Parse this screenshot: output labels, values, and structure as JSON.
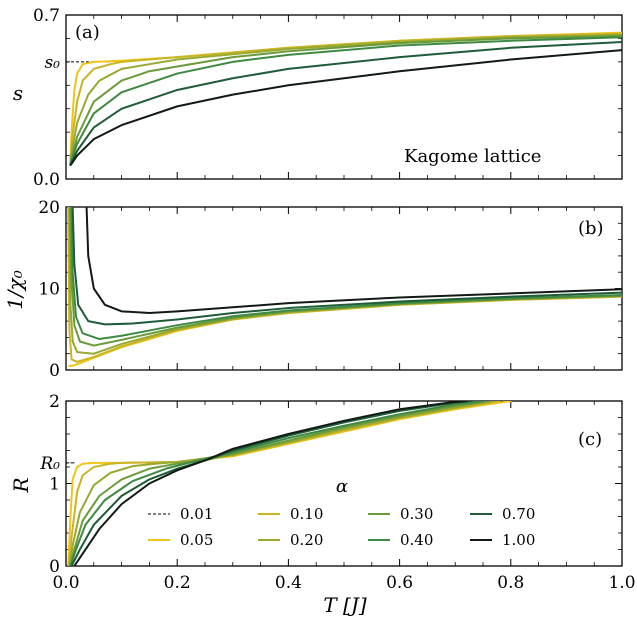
{
  "chart_data": [
    {
      "type": "line",
      "panel_tag": "(a)",
      "ylabel": "s",
      "ylim": [
        0,
        0.7
      ],
      "yticks": [
        "0.0",
        "0.7"
      ],
      "ref_label": "s₀",
      "ref_value": 0.5,
      "annotation": "Kagome lattice",
      "show_x_tick_labels": false,
      "series": [
        {
          "name": "0.01",
          "color": "#000000",
          "x": [
            0.001,
            0.01,
            0.05,
            0.1,
            0.2,
            0.4,
            0.6,
            0.8,
            1.0
          ],
          "y": [
            0.5,
            0.5,
            0.5,
            0.5,
            0.5,
            0.5,
            0.5,
            0.5,
            0.5
          ]
        },
        {
          "name": "0.05",
          "color": "#f0c419",
          "x": [
            0.008,
            0.01,
            0.015,
            0.02,
            0.03,
            0.05,
            0.1,
            0.2,
            0.4,
            0.6,
            0.8,
            1.0
          ],
          "y": [
            0.08,
            0.2,
            0.38,
            0.45,
            0.49,
            0.5,
            0.505,
            0.52,
            0.56,
            0.59,
            0.61,
            0.625
          ]
        },
        {
          "name": "0.10",
          "color": "#c9b424",
          "x": [
            0.008,
            0.01,
            0.02,
            0.03,
            0.05,
            0.08,
            0.1,
            0.2,
            0.4,
            0.6,
            0.8,
            1.0
          ],
          "y": [
            0.07,
            0.15,
            0.33,
            0.42,
            0.47,
            0.49,
            0.5,
            0.52,
            0.56,
            0.59,
            0.61,
            0.62
          ]
        },
        {
          "name": "0.20",
          "color": "#97a930",
          "x": [
            0.008,
            0.01,
            0.02,
            0.04,
            0.06,
            0.1,
            0.15,
            0.2,
            0.4,
            0.6,
            0.8,
            1.0
          ],
          "y": [
            0.07,
            0.11,
            0.24,
            0.36,
            0.42,
            0.47,
            0.49,
            0.51,
            0.555,
            0.585,
            0.605,
            0.615
          ]
        },
        {
          "name": "0.30",
          "color": "#6a9a3a",
          "x": [
            0.008,
            0.01,
            0.02,
            0.05,
            0.1,
            0.15,
            0.2,
            0.3,
            0.4,
            0.6,
            0.8,
            1.0
          ],
          "y": [
            0.065,
            0.09,
            0.18,
            0.33,
            0.42,
            0.46,
            0.48,
            0.52,
            0.545,
            0.58,
            0.6,
            0.61
          ]
        },
        {
          "name": "0.40",
          "color": "#3f8a43",
          "x": [
            0.008,
            0.01,
            0.02,
            0.05,
            0.1,
            0.2,
            0.3,
            0.4,
            0.6,
            0.8,
            1.0
          ],
          "y": [
            0.065,
            0.08,
            0.15,
            0.28,
            0.37,
            0.45,
            0.5,
            0.53,
            0.57,
            0.59,
            0.605
          ]
        },
        {
          "name": "0.70",
          "color": "#1f5c38",
          "x": [
            0.008,
            0.01,
            0.02,
            0.05,
            0.1,
            0.2,
            0.3,
            0.4,
            0.6,
            0.8,
            1.0
          ],
          "y": [
            0.06,
            0.07,
            0.12,
            0.22,
            0.3,
            0.38,
            0.43,
            0.47,
            0.52,
            0.56,
            0.585
          ]
        },
        {
          "name": "1.00",
          "color": "#111a14",
          "x": [
            0.008,
            0.01,
            0.02,
            0.05,
            0.1,
            0.2,
            0.3,
            0.4,
            0.6,
            0.8,
            1.0
          ],
          "y": [
            0.06,
            0.065,
            0.1,
            0.17,
            0.23,
            0.31,
            0.36,
            0.4,
            0.46,
            0.51,
            0.55
          ]
        }
      ]
    },
    {
      "type": "line",
      "panel_tag": "(b)",
      "ylabel": "1/χ₀",
      "ylim": [
        0,
        20
      ],
      "yticks": [
        "0",
        "10",
        "20"
      ],
      "show_x_tick_labels": false,
      "series": [
        {
          "name": "0.01",
          "color": "#000000",
          "x": [
            0.001,
            0.01,
            0.05,
            0.1,
            0.2,
            0.4,
            0.6,
            0.8,
            1.0
          ],
          "y": [
            0,
            0.3,
            1.5,
            2.8,
            4.8,
            7.0,
            8.0,
            8.6,
            9.0
          ]
        },
        {
          "name": "0.05",
          "color": "#f0c419",
          "x": [
            0.006,
            0.01,
            0.02,
            0.05,
            0.1,
            0.2,
            0.3,
            0.4,
            0.6,
            0.8,
            1.0
          ],
          "y": [
            0.5,
            0.5,
            0.7,
            1.5,
            2.8,
            4.8,
            6.2,
            7.0,
            8.0,
            8.6,
            9.0
          ]
        },
        {
          "name": "0.10",
          "color": "#c9b424",
          "x": [
            0.004,
            0.006,
            0.01,
            0.02,
            0.05,
            0.1,
            0.2,
            0.3,
            0.4,
            0.6,
            0.8,
            1.0
          ],
          "y": [
            20,
            5,
            1.3,
            1.0,
            1.6,
            2.9,
            4.9,
            6.2,
            7.0,
            8.0,
            8.6,
            9.0
          ]
        },
        {
          "name": "0.20",
          "color": "#97a930",
          "x": [
            0.006,
            0.008,
            0.012,
            0.02,
            0.05,
            0.1,
            0.2,
            0.3,
            0.4,
            0.6,
            0.8,
            1.0
          ],
          "y": [
            20,
            8,
            3.5,
            2.2,
            2.0,
            3.2,
            5.0,
            6.3,
            7.1,
            8.1,
            8.7,
            9.1
          ]
        },
        {
          "name": "0.30",
          "color": "#6a9a3a",
          "x": [
            0.008,
            0.01,
            0.015,
            0.025,
            0.05,
            0.1,
            0.2,
            0.3,
            0.4,
            0.6,
            0.8,
            1.0
          ],
          "y": [
            20,
            11,
            5.5,
            3.5,
            3.0,
            3.7,
            5.2,
            6.4,
            7.2,
            8.1,
            8.7,
            9.1
          ]
        },
        {
          "name": "0.40",
          "color": "#3f8a43",
          "x": [
            0.01,
            0.012,
            0.018,
            0.03,
            0.06,
            0.1,
            0.2,
            0.3,
            0.4,
            0.6,
            0.8,
            1.0
          ],
          "y": [
            20,
            12,
            6.5,
            4.5,
            3.8,
            4.2,
            5.5,
            6.6,
            7.3,
            8.2,
            8.8,
            9.2
          ]
        },
        {
          "name": "0.70",
          "color": "#1f5c38",
          "x": [
            0.012,
            0.015,
            0.022,
            0.04,
            0.07,
            0.12,
            0.2,
            0.3,
            0.4,
            0.6,
            0.8,
            1.0
          ],
          "y": [
            20,
            13,
            8.0,
            6.0,
            5.6,
            5.7,
            6.2,
            7.0,
            7.6,
            8.4,
            9.0,
            9.5
          ]
        },
        {
          "name": "1.00",
          "color": "#111a14",
          "x": [
            0.037,
            0.04,
            0.05,
            0.07,
            0.1,
            0.15,
            0.2,
            0.3,
            0.4,
            0.6,
            0.8,
            1.0
          ],
          "y": [
            20,
            14,
            10,
            8.0,
            7.2,
            7.0,
            7.2,
            7.7,
            8.2,
            8.9,
            9.4,
            9.9
          ]
        }
      ]
    },
    {
      "type": "line",
      "panel_tag": "(c)",
      "ylabel": "R",
      "ylim": [
        0,
        2
      ],
      "yticks": [
        "0",
        "1",
        "2"
      ],
      "ref_label": "R₀",
      "ref_value": 1.25,
      "xlabel": "T [J]",
      "xlim": [
        0,
        1
      ],
      "xticks": [
        "0.0",
        "0.2",
        "0.4",
        "0.6",
        "0.8",
        "1.0"
      ],
      "show_x_tick_labels": true,
      "legend": {
        "title": "α",
        "placement": "lower-center",
        "ncol": 4
      },
      "series": [
        {
          "name": "0.01",
          "color": "#000000",
          "dashed": true,
          "x": [
            0.0,
            0.015
          ],
          "y": [
            1.25,
            1.25
          ]
        },
        {
          "name": "0.05",
          "color": "#f0c419",
          "x": [
            0.004,
            0.008,
            0.012,
            0.02,
            0.03,
            0.05,
            0.1,
            0.2,
            0.3,
            0.4,
            0.5,
            0.6,
            0.7,
            0.8
          ],
          "y": [
            0,
            0.6,
            1.05,
            1.2,
            1.24,
            1.25,
            1.25,
            1.26,
            1.33,
            1.48,
            1.63,
            1.78,
            1.9,
            2.0
          ]
        },
        {
          "name": "0.10",
          "color": "#c9b424",
          "x": [
            0.005,
            0.01,
            0.02,
            0.03,
            0.05,
            0.08,
            0.1,
            0.2,
            0.3,
            0.4,
            0.5,
            0.6,
            0.7,
            0.78
          ],
          "y": [
            0,
            0.35,
            0.9,
            1.1,
            1.2,
            1.24,
            1.25,
            1.26,
            1.34,
            1.49,
            1.64,
            1.79,
            1.91,
            2.0
          ]
        },
        {
          "name": "0.20",
          "color": "#97a930",
          "x": [
            0.006,
            0.012,
            0.025,
            0.05,
            0.08,
            0.12,
            0.16,
            0.2,
            0.3,
            0.4,
            0.5,
            0.6,
            0.7,
            0.77
          ],
          "y": [
            0,
            0.25,
            0.65,
            0.98,
            1.13,
            1.21,
            1.24,
            1.26,
            1.35,
            1.5,
            1.66,
            1.8,
            1.92,
            2.0
          ]
        },
        {
          "name": "0.30",
          "color": "#6a9a3a",
          "x": [
            0.007,
            0.015,
            0.03,
            0.06,
            0.1,
            0.15,
            0.2,
            0.25,
            0.3,
            0.4,
            0.5,
            0.6,
            0.7,
            0.76
          ],
          "y": [
            0,
            0.2,
            0.55,
            0.85,
            1.05,
            1.18,
            1.24,
            1.28,
            1.36,
            1.52,
            1.68,
            1.82,
            1.94,
            2.0
          ]
        },
        {
          "name": "0.40",
          "color": "#3f8a43",
          "x": [
            0.008,
            0.018,
            0.035,
            0.07,
            0.12,
            0.18,
            0.22,
            0.3,
            0.4,
            0.5,
            0.6,
            0.7,
            0.75
          ],
          "y": [
            0,
            0.2,
            0.5,
            0.8,
            1.03,
            1.18,
            1.25,
            1.38,
            1.55,
            1.7,
            1.84,
            1.96,
            2.0
          ]
        },
        {
          "name": "0.70",
          "color": "#1f5c38",
          "x": [
            0.01,
            0.025,
            0.05,
            0.1,
            0.15,
            0.2,
            0.25,
            0.3,
            0.4,
            0.5,
            0.6,
            0.7,
            0.73
          ],
          "y": [
            0,
            0.2,
            0.5,
            0.85,
            1.05,
            1.18,
            1.28,
            1.4,
            1.58,
            1.74,
            1.88,
            1.98,
            2.0
          ]
        },
        {
          "name": "1.00",
          "color": "#111a14",
          "x": [
            0.015,
            0.03,
            0.06,
            0.1,
            0.15,
            0.2,
            0.25,
            0.3,
            0.4,
            0.5,
            0.6,
            0.7,
            0.72
          ],
          "y": [
            0,
            0.15,
            0.45,
            0.75,
            1.0,
            1.16,
            1.28,
            1.42,
            1.6,
            1.76,
            1.9,
            1.99,
            2.0
          ]
        }
      ]
    }
  ]
}
